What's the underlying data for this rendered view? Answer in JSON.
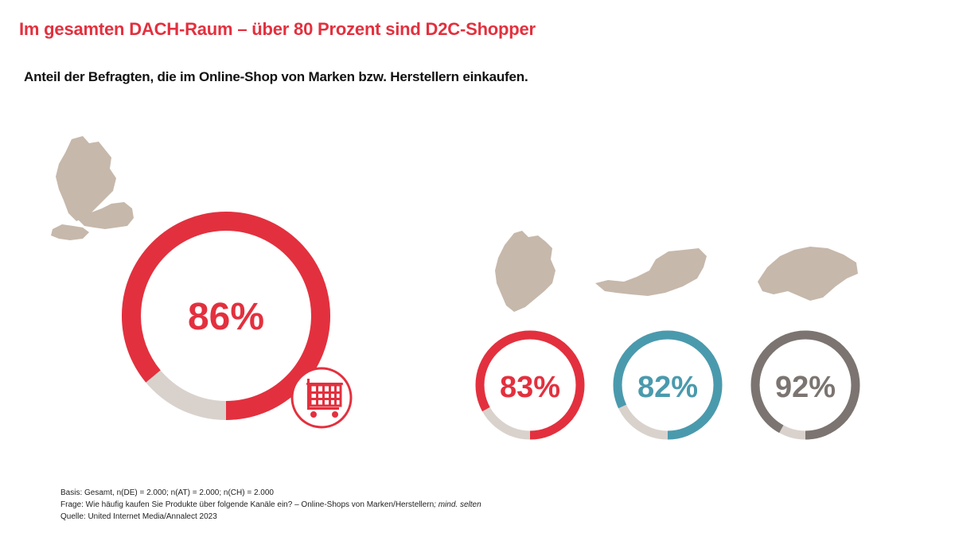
{
  "title": "Im gesamten DACH-Raum – über 80 Prozent sind D2C-Shopper",
  "subtitle": "Anteil der Befragten, die im Online-Shop von Marken bzw. Herstellern einkaufen.",
  "icons": {
    "main": "shopping-cart-icon"
  },
  "colors": {
    "red": "#e3303e",
    "teal": "#4a9aad",
    "gray": "#7b7470",
    "track": "#d9d2cc",
    "map": "#c6b8ab"
  },
  "chart_data": {
    "type": "donut",
    "title": "Im gesamten DACH-Raum – über 80 Prozent sind D2C-Shopper",
    "subtitle": "Anteil der Befragten, die im Online-Shop von Marken bzw. Herstellern einkaufen.",
    "unit": "%",
    "series": [
      {
        "key": "dach",
        "value": 86,
        "label": "86%",
        "color": "#e3303e"
      },
      {
        "key": "de",
        "value": 83,
        "label": "83%",
        "color": "#e3303e"
      },
      {
        "key": "at",
        "value": 82,
        "label": "82%",
        "color": "#4a9aad"
      },
      {
        "key": "ch",
        "value": 92,
        "label": "92%",
        "color": "#7b7470"
      }
    ]
  },
  "notes": {
    "basis": "Basis: Gesamt, n(DE) = 2.000; n(AT) = 2.000; n(CH) = 2.000",
    "frage": "Frage: Wie häufig kaufen Sie Produkte über folgende Kanäle ein? – Online-Shops von Marken/Herstellern",
    "frage_italic": "; mind. selten",
    "quelle": "Quelle: United Internet Media/Annalect 2023"
  }
}
